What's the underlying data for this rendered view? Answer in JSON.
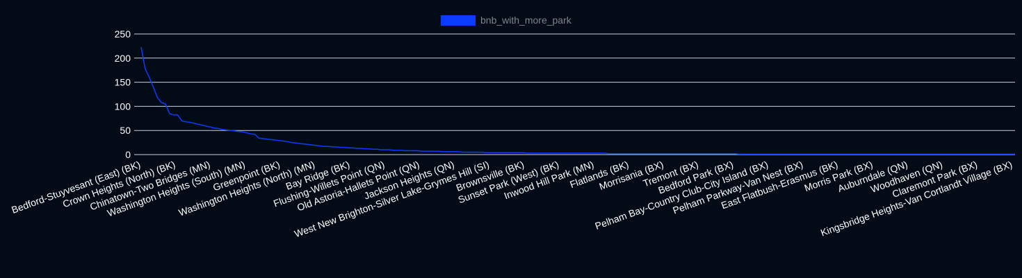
{
  "chart_data": {
    "type": "line",
    "legend": {
      "placement": "top-center",
      "label": "bnb_with_more_park",
      "color": "#0a3cff"
    },
    "series_color": "#0a3cff",
    "grid_color": "#c8d2dc",
    "ylim": [
      0,
      250
    ],
    "yticks": [
      0,
      50,
      100,
      150,
      200,
      250
    ],
    "tick_labels": [
      "Bedford-Stuyvesant (East) (BK)",
      "Crown Heights (North) (BK)",
      "Chinatown-Two Bridges (MN)",
      "Washington Heights (South) (MN)",
      "Greenpoint (BK)",
      "Washington Heights (North) (MN)",
      "Bay Ridge (BK)",
      "Flushing-Willets Point (QN)",
      "Old Astoria-Hallets Point (QN)",
      "Jackson Heights (QN)",
      "West New Brighton-Silver Lake-Grymes Hill (SI)",
      "Brownsville (BK)",
      "Sunset Park (West) (BK)",
      "Inwood Hill Park (MN)",
      "Flatlands (BK)",
      "Morrisania (BX)",
      "Tremont (BX)",
      "Bedford Park (BX)",
      "Pelham Bay-Country Club-City Island (BX)",
      "Pelham Parkway-Van Nest (BX)",
      "East Flatbush-Erasmus (BK)",
      "Morris Park (BX)",
      "Auburndale (QN)",
      "Woodhaven (QN)",
      "Claremont Park (BX)",
      "Kingsbridge Heights-Van Cortlandt Village (BX)"
    ],
    "values": [
      223,
      178,
      160,
      140,
      118,
      108,
      105,
      85,
      82,
      82,
      70,
      68,
      67,
      65,
      63,
      61,
      59,
      57,
      55,
      54,
      52,
      51,
      50,
      49,
      48,
      47,
      45,
      43,
      42,
      34,
      33,
      32,
      31,
      30,
      29,
      28,
      27,
      25,
      24,
      23,
      22,
      21,
      20,
      19,
      18,
      17,
      17,
      16,
      16,
      15,
      15,
      14,
      14,
      13,
      13,
      12,
      12,
      11,
      11,
      10,
      10,
      10,
      9,
      9,
      9,
      8,
      8,
      8,
      8,
      7,
      7,
      7,
      7,
      7,
      6,
      6,
      6,
      6,
      6,
      5,
      5,
      5,
      5,
      5,
      5,
      4,
      4,
      4,
      4,
      4,
      4,
      4,
      4,
      4,
      4,
      3,
      3,
      3,
      3,
      3,
      3,
      3,
      3,
      3,
      3,
      3,
      3,
      3,
      3,
      3,
      3,
      3,
      3,
      3,
      3,
      2,
      2,
      2,
      2,
      2,
      2,
      2,
      2,
      2,
      2,
      2,
      2,
      2,
      2,
      2,
      2,
      2,
      2,
      2,
      2,
      2,
      2,
      2,
      2,
      2,
      2,
      2,
      2,
      2,
      2,
      2,
      2,
      1,
      1,
      1,
      1,
      1,
      1,
      1,
      1,
      1,
      1,
      1,
      1,
      1,
      1,
      1,
      1,
      1,
      1,
      1,
      1,
      1,
      1,
      1,
      1,
      1,
      1,
      1,
      1,
      1,
      1,
      1,
      1,
      1,
      1,
      1,
      1,
      1,
      1,
      1,
      1,
      1,
      1,
      1,
      1,
      1,
      1,
      1,
      1,
      1,
      1,
      1,
      1,
      1,
      1,
      1,
      1,
      1,
      1,
      1,
      1,
      1,
      1,
      1,
      1,
      1,
      1,
      1,
      1,
      1
    ]
  }
}
